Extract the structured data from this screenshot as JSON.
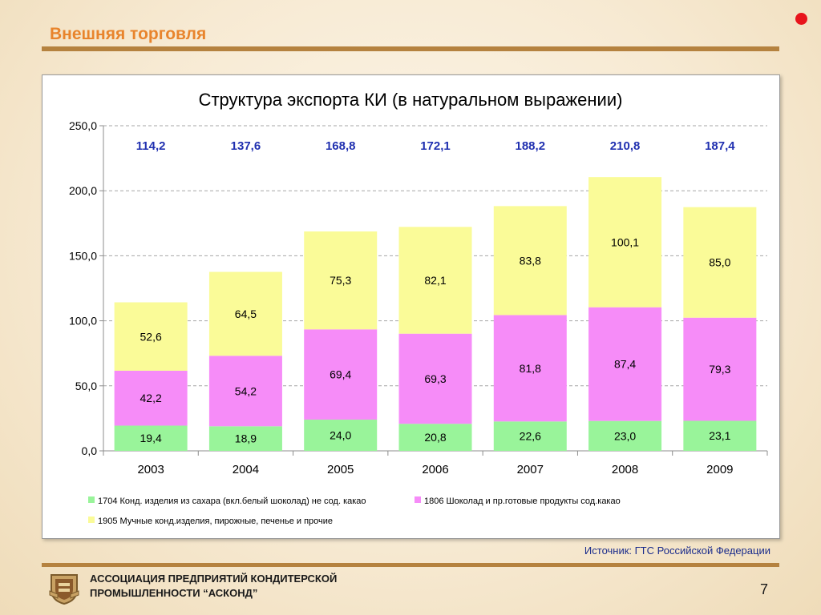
{
  "slide": {
    "title": "Внешняя торговля",
    "source": "Источник: ГТС Российской Федерации",
    "org_line1": "АССОЦИАЦИЯ ПРЕДПРИЯТИЙ КОНДИТЕРСКОЙ",
    "org_line2": "ПРОМЫШЛЕННОСТИ “АСКОНД”",
    "page_number": "7"
  },
  "chart_data": {
    "type": "bar",
    "stacked": true,
    "title": "Структура экспорта КИ (в натуральном выражении)",
    "categories": [
      "2003",
      "2004",
      "2005",
      "2006",
      "2007",
      "2008",
      "2009"
    ],
    "ylim": [
      0,
      250
    ],
    "yticks": [
      "0,0",
      "50,0",
      "100,0",
      "150,0",
      "200,0",
      "250,0"
    ],
    "grid": true,
    "legend_position": "bottom",
    "totals": [
      "114,2",
      "137,6",
      "168,8",
      "172,1",
      "188,2",
      "210,8",
      "187,4"
    ],
    "series": [
      {
        "name": "1704 Конд. изделия из сахара (вкл.белый шоколад) не сод. какао",
        "color": "#99f49a",
        "values": [
          19.4,
          18.9,
          24.0,
          20.8,
          22.6,
          23.0,
          23.1
        ],
        "labels": [
          "19,4",
          "18,9",
          "24,0",
          "20,8",
          "22,6",
          "23,0",
          "23,1"
        ]
      },
      {
        "name": "1806 Шоколад и пр.готовые продукты сод.какао",
        "color": "#f68cf8",
        "values": [
          42.2,
          54.2,
          69.4,
          69.3,
          81.8,
          87.4,
          79.3
        ],
        "labels": [
          "42,2",
          "54,2",
          "69,4",
          "69,3",
          "81,8",
          "87,4",
          "79,3"
        ]
      },
      {
        "name": "1905 Мучные конд.изделия, пирожные, печенье и прочие",
        "color": "#fafb98",
        "values": [
          52.6,
          64.5,
          75.3,
          82.1,
          83.8,
          100.1,
          85.0
        ],
        "labels": [
          "52,6",
          "64,5",
          "75,3",
          "82,1",
          "83,8",
          "100,1",
          "85,0"
        ]
      }
    ]
  }
}
